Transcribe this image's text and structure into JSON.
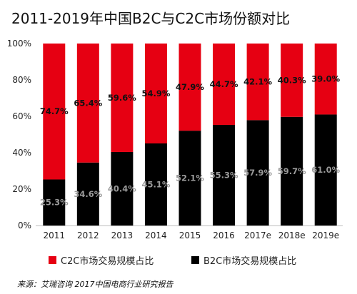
{
  "title": "2011-2019年中国B2C与C2C市场份额对比",
  "source": "来源：艾瑞咨询 2017中国电商行业研究报告",
  "chart_data": {
    "type": "bar",
    "stacked": true,
    "categories": [
      "2011",
      "2012",
      "2013",
      "2014",
      "2015",
      "2016",
      "2017e",
      "2018e",
      "2019e"
    ],
    "series": [
      {
        "name": "B2C市场交易规模占比",
        "color": "#000000",
        "values": [
          25.3,
          34.6,
          40.4,
          45.1,
          52.1,
          55.3,
          57.9,
          59.7,
          61.0
        ],
        "labels": [
          "25.3%",
          "34.6%",
          "40.4%",
          "45.1%",
          "52.1%",
          "55.3%",
          "57.9%",
          "59.7%",
          "61.0%"
        ]
      },
      {
        "name": "C2C市场交易规模占比",
        "color": "#e60012",
        "values": [
          74.7,
          65.4,
          59.6,
          54.9,
          47.9,
          44.7,
          42.1,
          40.3,
          39.0
        ],
        "labels": [
          "74.7%",
          "65.4%",
          "59.6%",
          "54.9%",
          "47.9%",
          "44.7%",
          "42.1%",
          "40.3%",
          "39.0%"
        ]
      }
    ],
    "yticks": [
      "0%",
      "20%",
      "40%",
      "60%",
      "80%",
      "100%"
    ],
    "ylim": [
      0,
      100
    ],
    "legend": [
      "C2C市场交易规模占比",
      "B2C市场交易规模占比"
    ],
    "legend_position": "bottom"
  }
}
